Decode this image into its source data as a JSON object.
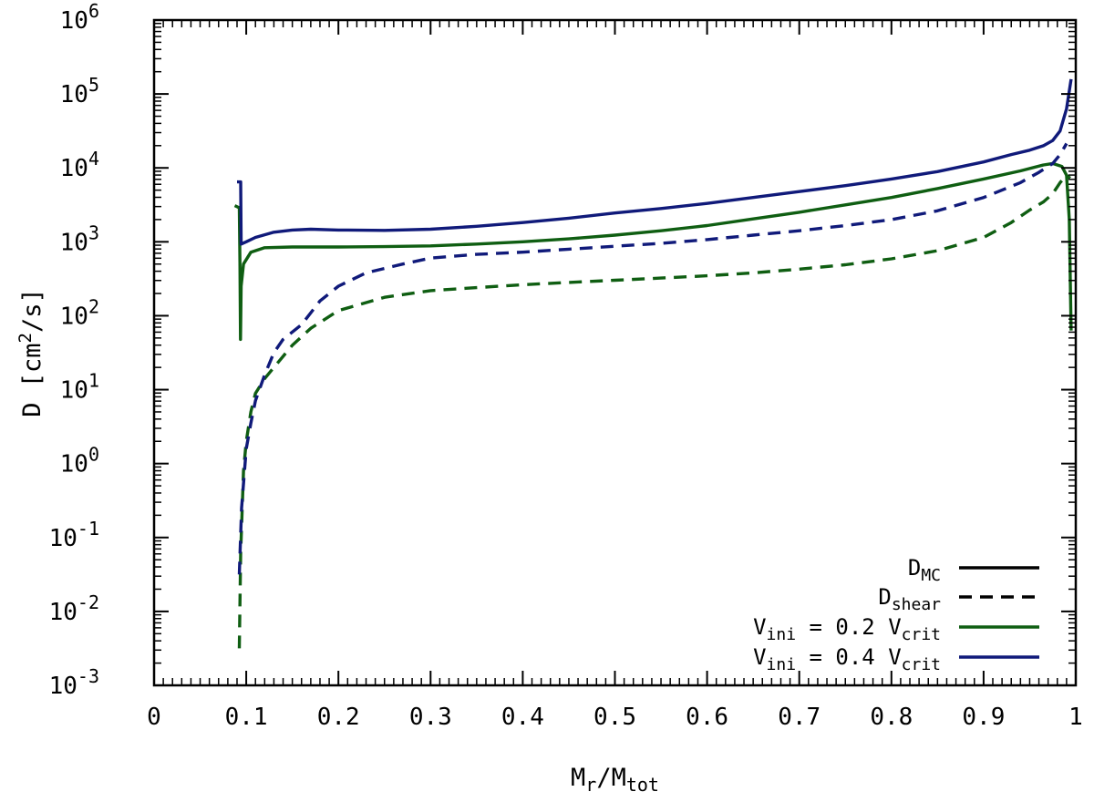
{
  "chart_data": {
    "type": "line",
    "xlabel": {
      "main": "M",
      "sub1": "r",
      "mid": "/M",
      "sub2": "tot"
    },
    "ylabel": {
      "pre": "D  [cm",
      "sup": "2",
      "post": "/s]"
    },
    "xlim": [
      0,
      1
    ],
    "ylim_log10": [
      -3,
      6
    ],
    "x_ticks": [
      {
        "value": 0,
        "label": "0"
      },
      {
        "value": 0.1,
        "label": "0.1"
      },
      {
        "value": 0.2,
        "label": "0.2"
      },
      {
        "value": 0.3,
        "label": "0.3"
      },
      {
        "value": 0.4,
        "label": "0.4"
      },
      {
        "value": 0.5,
        "label": "0.5"
      },
      {
        "value": 0.6,
        "label": "0.6"
      },
      {
        "value": 0.7,
        "label": "0.7"
      },
      {
        "value": 0.8,
        "label": "0.8"
      },
      {
        "value": 0.9,
        "label": "0.9"
      },
      {
        "value": 1,
        "label": "1"
      }
    ],
    "y_ticks": [
      {
        "exp": -3,
        "base": "10",
        "sup": "-3"
      },
      {
        "exp": -2,
        "base": "10",
        "sup": "-2"
      },
      {
        "exp": -1,
        "base": "10",
        "sup": "-1"
      },
      {
        "exp": 0,
        "base": "10",
        "sup": "0"
      },
      {
        "exp": 1,
        "base": "10",
        "sup": "1"
      },
      {
        "exp": 2,
        "base": "10",
        "sup": "2"
      },
      {
        "exp": 3,
        "base": "10",
        "sup": "3"
      },
      {
        "exp": 4,
        "base": "10",
        "sup": "4"
      },
      {
        "exp": 5,
        "base": "10",
        "sup": "5"
      },
      {
        "exp": 6,
        "base": "10",
        "sup": "6"
      }
    ],
    "legend": [
      {
        "main": "D",
        "sub": "MC",
        "tail": "",
        "style": "solid",
        "color": "#000000"
      },
      {
        "main": "D",
        "sub": "shear",
        "tail": "",
        "style": "dashed",
        "color": "#000000"
      },
      {
        "main": "V",
        "sub": "ini",
        "tail": " = 0.2 V",
        "sub2": "crit",
        "style": "solid",
        "color": "#0f5e12"
      },
      {
        "main": "V",
        "sub": "ini",
        "tail": " = 0.4 V",
        "sub2": "crit",
        "style": "solid",
        "color": "#101a7a"
      }
    ],
    "series": [
      {
        "name": "D_MC, Vini = 0.2 Vcrit",
        "color": "#0f5e12",
        "style": "solid",
        "points": [
          [
            0.0875,
            3.49
          ],
          [
            0.0925,
            3.46
          ],
          [
            0.0932,
            2.7
          ],
          [
            0.0938,
            1.68
          ],
          [
            0.0945,
            2.4
          ],
          [
            0.097,
            2.7
          ],
          [
            0.105,
            2.86
          ],
          [
            0.12,
            2.92
          ],
          [
            0.15,
            2.93
          ],
          [
            0.2,
            2.93
          ],
          [
            0.25,
            2.935
          ],
          [
            0.3,
            2.945
          ],
          [
            0.35,
            2.97
          ],
          [
            0.4,
            3.0
          ],
          [
            0.45,
            3.04
          ],
          [
            0.5,
            3.09
          ],
          [
            0.55,
            3.15
          ],
          [
            0.6,
            3.22
          ],
          [
            0.65,
            3.31
          ],
          [
            0.7,
            3.4
          ],
          [
            0.75,
            3.5
          ],
          [
            0.8,
            3.6
          ],
          [
            0.85,
            3.72
          ],
          [
            0.9,
            3.85
          ],
          [
            0.94,
            3.96
          ],
          [
            0.965,
            4.04
          ],
          [
            0.975,
            4.06
          ],
          [
            0.985,
            4.02
          ],
          [
            0.99,
            3.9
          ],
          [
            0.993,
            3.3
          ],
          [
            0.995,
            1.8
          ]
        ]
      },
      {
        "name": "D_MC, Vini = 0.4 Vcrit",
        "color": "#101a7a",
        "style": "solid",
        "points": [
          [
            0.09,
            3.81
          ],
          [
            0.094,
            3.81
          ],
          [
            0.0945,
            2.97
          ],
          [
            0.1,
            3.0
          ],
          [
            0.11,
            3.06
          ],
          [
            0.13,
            3.13
          ],
          [
            0.15,
            3.16
          ],
          [
            0.17,
            3.17
          ],
          [
            0.2,
            3.16
          ],
          [
            0.25,
            3.155
          ],
          [
            0.3,
            3.17
          ],
          [
            0.35,
            3.21
          ],
          [
            0.4,
            3.26
          ],
          [
            0.45,
            3.32
          ],
          [
            0.5,
            3.39
          ],
          [
            0.55,
            3.45
          ],
          [
            0.6,
            3.52
          ],
          [
            0.65,
            3.6
          ],
          [
            0.7,
            3.68
          ],
          [
            0.75,
            3.76
          ],
          [
            0.8,
            3.85
          ],
          [
            0.85,
            3.95
          ],
          [
            0.9,
            4.08
          ],
          [
            0.93,
            4.18
          ],
          [
            0.95,
            4.24
          ],
          [
            0.965,
            4.3
          ],
          [
            0.975,
            4.37
          ],
          [
            0.983,
            4.5
          ],
          [
            0.99,
            4.8
          ],
          [
            0.995,
            5.2
          ]
        ]
      },
      {
        "name": "D_shear, Vini = 0.2 Vcrit",
        "color": "#0f5e12",
        "style": "dashed",
        "points": [
          [
            0.0925,
            -2.5
          ],
          [
            0.094,
            -1.2
          ],
          [
            0.097,
            -0.1
          ],
          [
            0.1,
            0.3
          ],
          [
            0.105,
            0.7
          ],
          [
            0.11,
            0.95
          ],
          [
            0.12,
            1.15
          ],
          [
            0.13,
            1.3
          ],
          [
            0.15,
            1.6
          ],
          [
            0.17,
            1.83
          ],
          [
            0.2,
            2.07
          ],
          [
            0.25,
            2.25
          ],
          [
            0.3,
            2.34
          ],
          [
            0.35,
            2.38
          ],
          [
            0.4,
            2.42
          ],
          [
            0.45,
            2.45
          ],
          [
            0.5,
            2.48
          ],
          [
            0.55,
            2.51
          ],
          [
            0.6,
            2.54
          ],
          [
            0.65,
            2.58
          ],
          [
            0.7,
            2.63
          ],
          [
            0.75,
            2.69
          ],
          [
            0.8,
            2.77
          ],
          [
            0.85,
            2.88
          ],
          [
            0.9,
            3.06
          ],
          [
            0.93,
            3.26
          ],
          [
            0.95,
            3.43
          ],
          [
            0.965,
            3.54
          ],
          [
            0.975,
            3.65
          ],
          [
            0.983,
            3.8
          ],
          [
            0.99,
            3.9
          ],
          [
            0.994,
            3.86
          ]
        ]
      },
      {
        "name": "D_shear, Vini = 0.4 Vcrit",
        "color": "#101a7a",
        "style": "dashed",
        "points": [
          [
            0.0925,
            -1.5
          ],
          [
            0.095,
            -0.6
          ],
          [
            0.1,
            0.2
          ],
          [
            0.105,
            0.55
          ],
          [
            0.11,
            0.85
          ],
          [
            0.12,
            1.2
          ],
          [
            0.13,
            1.5
          ],
          [
            0.14,
            1.68
          ],
          [
            0.16,
            1.88
          ],
          [
            0.18,
            2.2
          ],
          [
            0.2,
            2.4
          ],
          [
            0.23,
            2.58
          ],
          [
            0.27,
            2.7
          ],
          [
            0.3,
            2.78
          ],
          [
            0.35,
            2.83
          ],
          [
            0.4,
            2.86
          ],
          [
            0.45,
            2.9
          ],
          [
            0.5,
            2.94
          ],
          [
            0.55,
            2.98
          ],
          [
            0.6,
            3.03
          ],
          [
            0.65,
            3.09
          ],
          [
            0.7,
            3.15
          ],
          [
            0.75,
            3.22
          ],
          [
            0.8,
            3.3
          ],
          [
            0.85,
            3.42
          ],
          [
            0.9,
            3.6
          ],
          [
            0.94,
            3.8
          ],
          [
            0.96,
            3.94
          ],
          [
            0.975,
            4.06
          ],
          [
            0.983,
            4.18
          ],
          [
            0.99,
            4.33
          ]
        ]
      }
    ]
  }
}
